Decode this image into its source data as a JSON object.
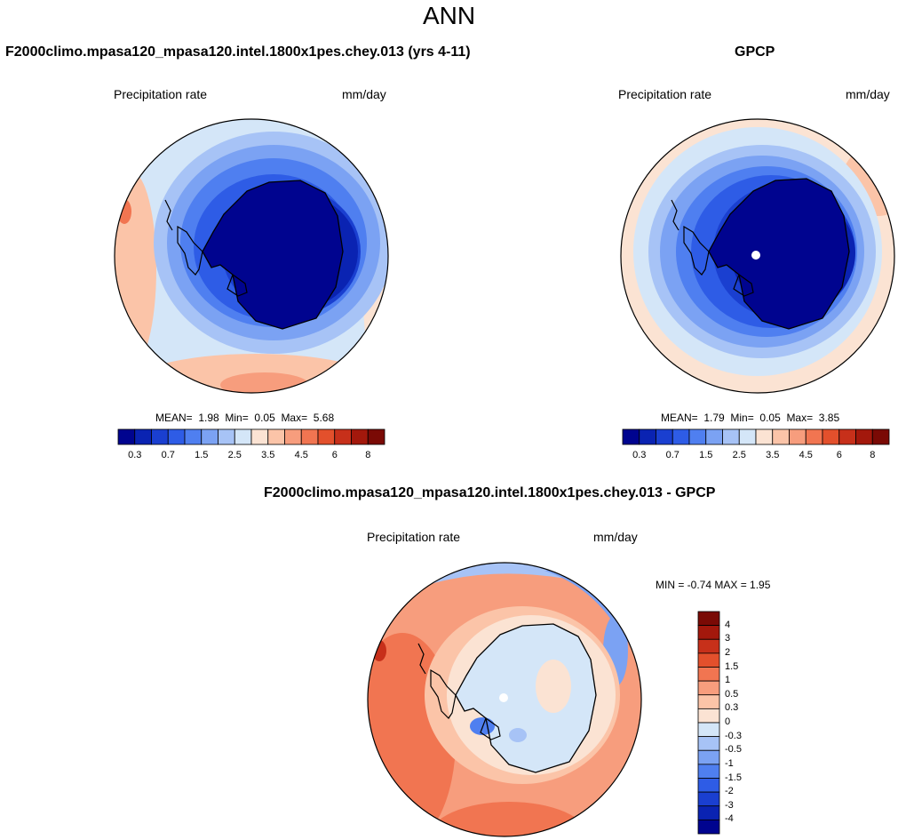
{
  "main_title": "ANN",
  "panels": [
    {
      "title": "F2000climo.mpasa120_mpasa120.intel.1800x1pes.chey.013 (yrs 4-11)",
      "variable": "Precipitation rate",
      "units": "mm/day",
      "stats": {
        "mean_label": "MEAN=",
        "mean": "1.98",
        "min_label": "Min=",
        "min": "0.05",
        "max_label": "Max=",
        "max": "5.68"
      }
    },
    {
      "title": "GPCP",
      "variable": "Precipitation rate",
      "units": "mm/day",
      "stats": {
        "mean_label": "MEAN=",
        "mean": "1.79",
        "min_label": "Min=",
        "min": "0.05",
        "max_label": "Max=",
        "max": "3.85"
      }
    },
    {
      "title": "F2000climo.mpasa120_mpasa120.intel.1800x1pes.chey.013 - GPCP",
      "variable": "Precipitation rate",
      "units": "mm/day",
      "stats": {
        "minmax": "MIN =  -0.74 MAX =   1.95"
      }
    }
  ],
  "colorbar_levels": [
    "0.3",
    "0.7",
    "1.5",
    "2.5",
    "3.5",
    "4.5",
    "6",
    "8"
  ],
  "colorbar_colors": [
    "#00048f",
    "#0a23b2",
    "#1a3fd0",
    "#2e5ce6",
    "#4f7ff0",
    "#7ba2f3",
    "#a7c3f6",
    "#d4e6f8",
    "#fbe3d3",
    "#fbc4a8",
    "#f79d7d",
    "#f17551",
    "#e3502c",
    "#c7301a",
    "#a3180c",
    "#7a0a05"
  ],
  "diff_colorbar_levels": [
    "4",
    "3",
    "2",
    "1.5",
    "1",
    "0.5",
    "0.3",
    "0",
    "-0.3",
    "-0.5",
    "-1",
    "-1.5",
    "-2",
    "-3",
    "-4"
  ],
  "diff_colorbar_colors": [
    "#7a0a05",
    "#a3180c",
    "#c7301a",
    "#e3502c",
    "#f17551",
    "#f79d7d",
    "#fbc4a8",
    "#fbe3d3",
    "#d4e6f8",
    "#a7c3f6",
    "#7ba2f3",
    "#4f7ff0",
    "#2e5ce6",
    "#1a3fd0",
    "#0a23b2",
    "#00048f"
  ]
}
